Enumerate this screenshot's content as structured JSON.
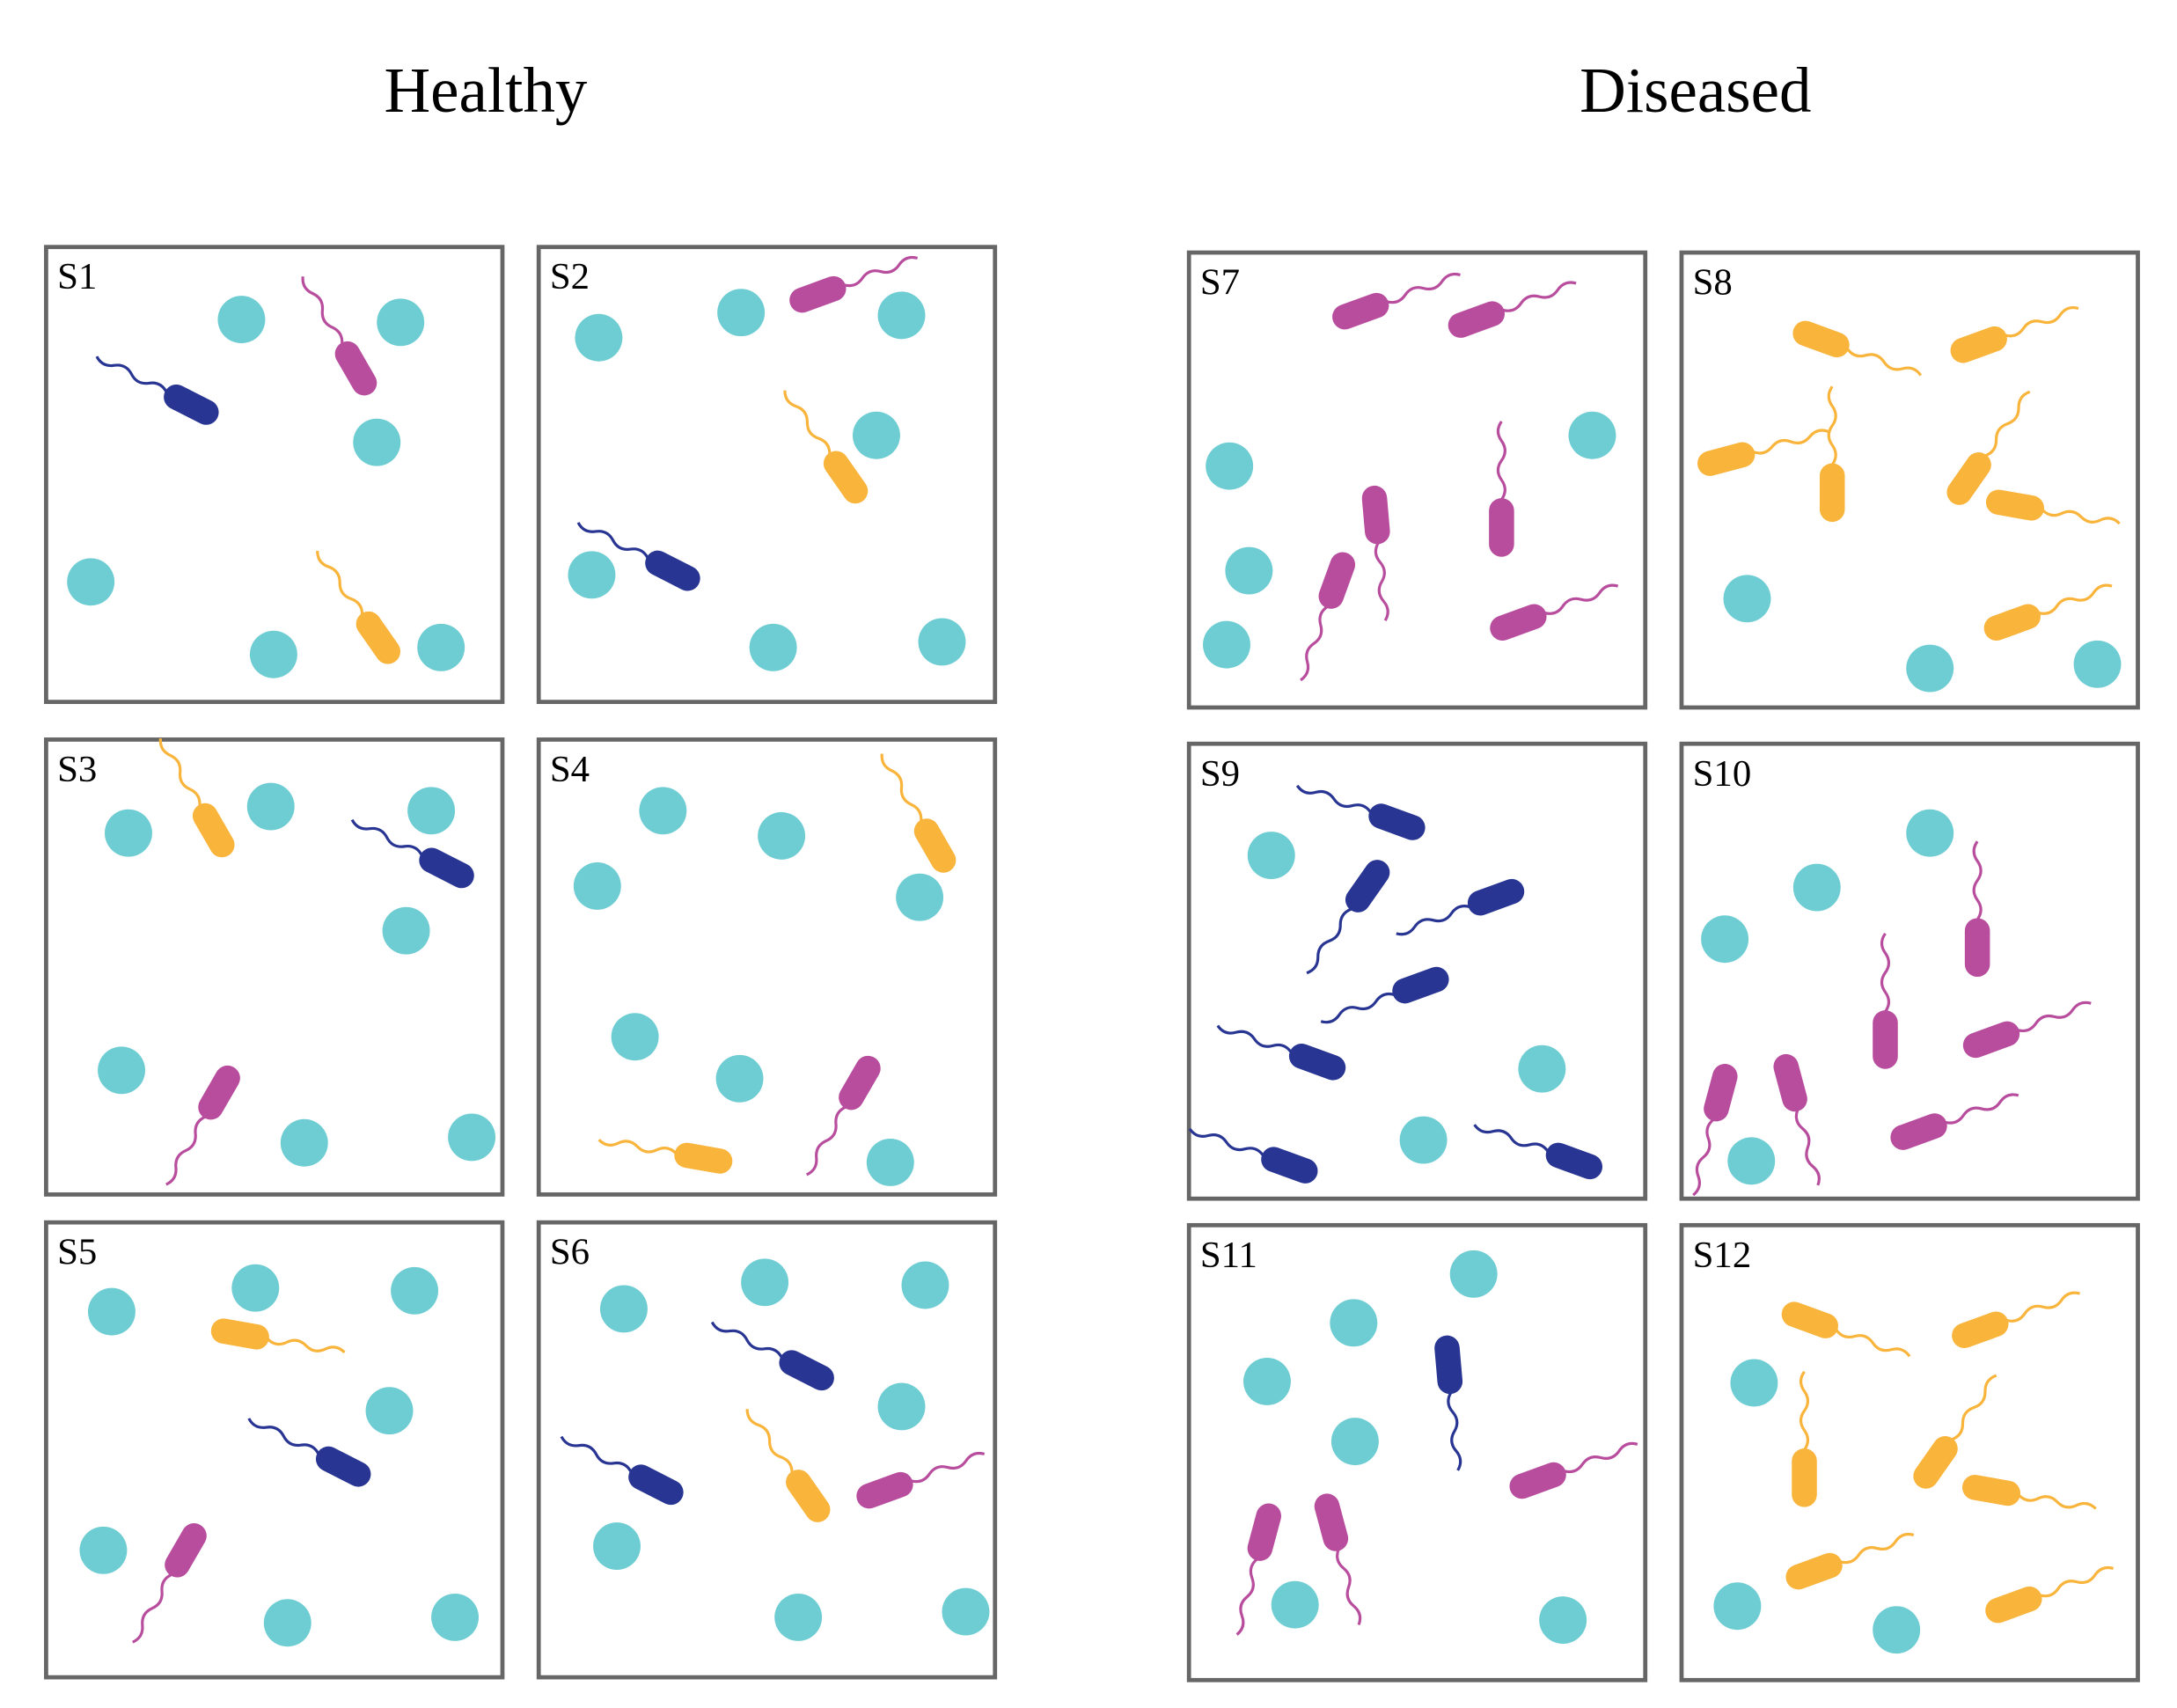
{
  "header": {
    "healthy": "Healthy",
    "diseased": "Diseased"
  },
  "samples": [
    "S1",
    "S2",
    "S3",
    "S4",
    "S5",
    "S6",
    "S7",
    "S8",
    "S9",
    "S10",
    "S11",
    "S12"
  ]
}
